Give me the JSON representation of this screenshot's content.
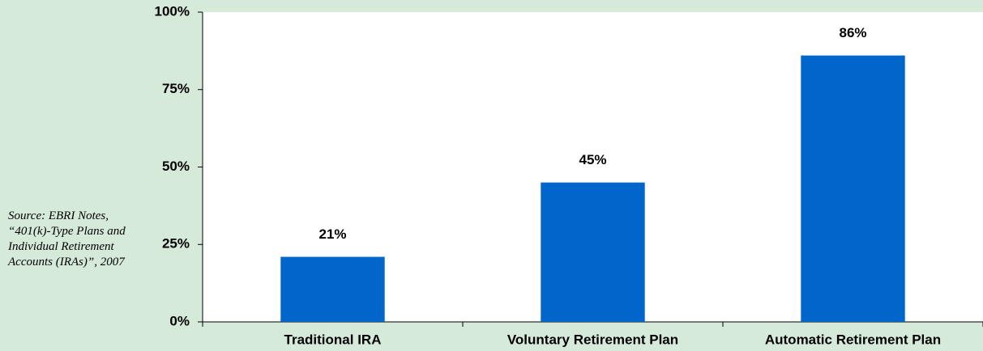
{
  "chart_data": {
    "type": "bar",
    "categories": [
      "Traditional IRA",
      "Voluntary Retirement Plan",
      "Automatic Retirement Plan"
    ],
    "values": [
      21,
      45,
      86
    ],
    "value_labels": [
      "21%",
      "45%",
      "86%"
    ],
    "color": "#0066cc",
    "ylim": [
      0,
      100
    ],
    "yticks": [
      {
        "value": 0,
        "label": "0%"
      },
      {
        "value": 25,
        "label": "25%"
      },
      {
        "value": 50,
        "label": "50%"
      },
      {
        "value": 75,
        "label": "75%"
      },
      {
        "value": 100,
        "label": "100%"
      }
    ],
    "grid": false,
    "annotation": "Source: EBRI Notes, “401(k)-Type Plans and Individual Retirement Accounts (IRAs)”, 2007"
  }
}
